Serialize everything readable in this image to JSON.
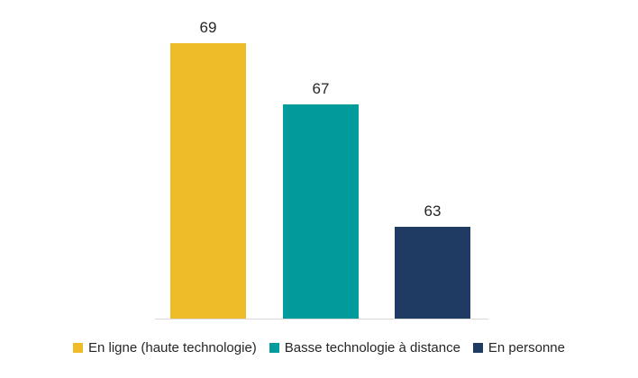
{
  "chart_data": {
    "type": "bar",
    "categories": [
      "En ligne (haute technologie)",
      "Basse technologie à distance",
      "En personne"
    ],
    "values": [
      69,
      67,
      63
    ],
    "data_labels": [
      "69",
      "67",
      "63"
    ],
    "colors": [
      "#EEBC28",
      "#009B9A",
      "#1F3A63"
    ],
    "ylim": [
      60,
      70
    ],
    "grid": false,
    "legend_position": "bottom",
    "title": "",
    "xlabel": "",
    "ylabel": ""
  },
  "legend": {
    "items": [
      {
        "label": "En ligne (haute technologie)",
        "color": "#EEBC28"
      },
      {
        "label": "Basse technologie à distance",
        "color": "#009B9A"
      },
      {
        "label": "En personne",
        "color": "#1F3A63"
      }
    ]
  },
  "style": {
    "axis_color": "#D9D9D9",
    "label_color": "#262626"
  }
}
